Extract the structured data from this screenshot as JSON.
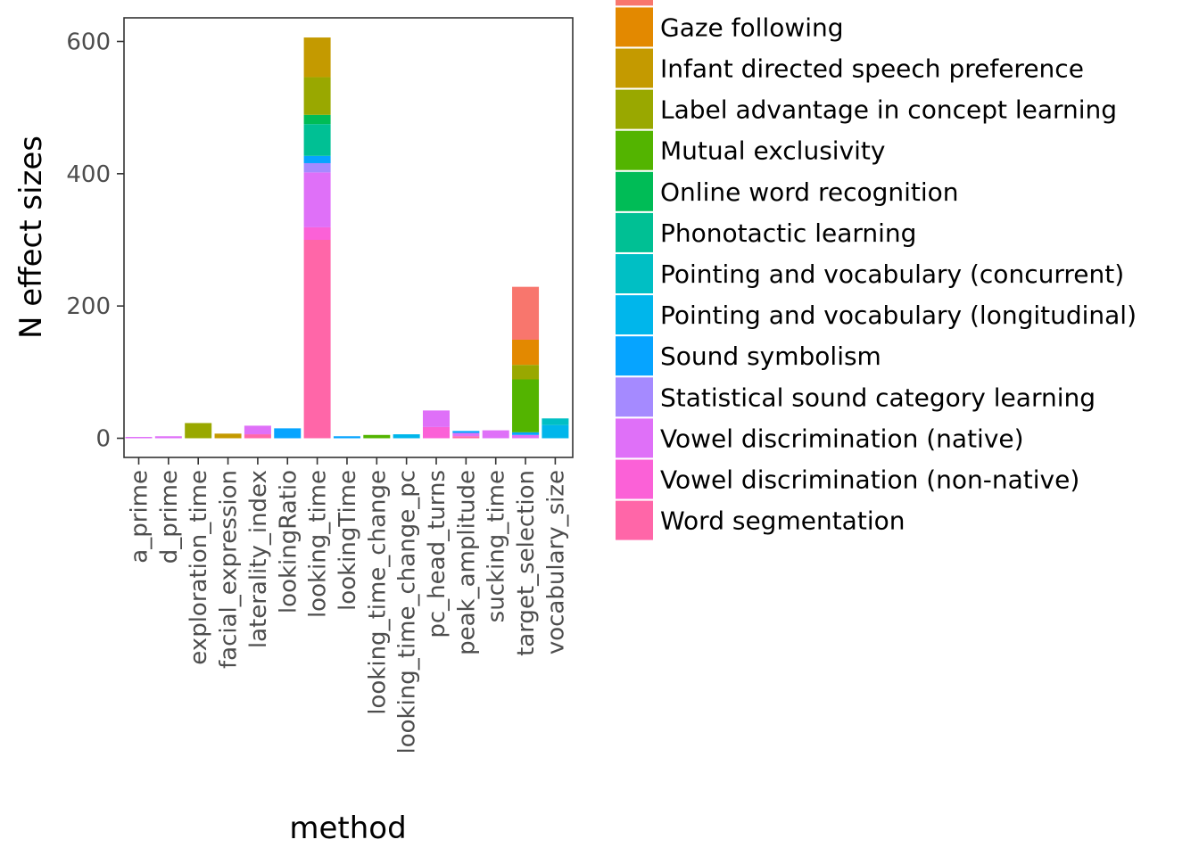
{
  "chart_data": {
    "type": "bar",
    "stacked": true,
    "xlabel": "method",
    "ylabel": "N effect sizes",
    "ylim": [
      -30,
      635
    ],
    "yticks": [
      0,
      200,
      400,
      600
    ],
    "legend_position": "right",
    "grid": false,
    "categories": [
      "a_prime",
      "d_prime",
      "exploration_time",
      "facial_expression",
      "laterality_index",
      "lookingRatio",
      "looking_time",
      "lookingTime",
      "looking_time_change",
      "looking_time_change_pc",
      "pc_head_turns",
      "peak_amplitude",
      "sucking_time",
      "target_selection",
      "vocabulary_size"
    ],
    "series": [
      {
        "name": "",
        "color": "#F8766D",
        "values": [
          0,
          0,
          0,
          0,
          0,
          0,
          0,
          0,
          0,
          0,
          0,
          0,
          0,
          80,
          0
        ]
      },
      {
        "name": "Gaze following",
        "color": "#E38900",
        "values": [
          0,
          0,
          0,
          0,
          0,
          0,
          0,
          0,
          0,
          0,
          0,
          0,
          0,
          38,
          0
        ]
      },
      {
        "name": "Infant directed speech preference",
        "color": "#C49A00",
        "values": [
          0,
          0,
          0,
          7,
          0,
          0,
          60,
          0,
          0,
          0,
          0,
          0,
          0,
          0,
          0
        ]
      },
      {
        "name": "Label advantage in concept learning",
        "color": "#99A800",
        "values": [
          0,
          0,
          23,
          0,
          0,
          0,
          57,
          0,
          0,
          0,
          0,
          0,
          0,
          22,
          0
        ]
      },
      {
        "name": "Mutual exclusivity",
        "color": "#53B400",
        "values": [
          0,
          0,
          0,
          0,
          0,
          0,
          0,
          0,
          5,
          0,
          0,
          0,
          0,
          80,
          0
        ]
      },
      {
        "name": "Online word recognition",
        "color": "#00BC56",
        "values": [
          0,
          0,
          0,
          0,
          0,
          0,
          14,
          0,
          0,
          0,
          0,
          0,
          0,
          0,
          0
        ]
      },
      {
        "name": "Phonotactic learning",
        "color": "#00C094",
        "values": [
          0,
          0,
          0,
          0,
          0,
          0,
          48,
          0,
          0,
          0,
          0,
          0,
          0,
          0,
          0
        ]
      },
      {
        "name": "Pointing and vocabulary (concurrent)",
        "color": "#00BFC4",
        "values": [
          0,
          0,
          0,
          0,
          0,
          0,
          0,
          0,
          0,
          0,
          0,
          0,
          0,
          0,
          10
        ]
      },
      {
        "name": "Pointing and vocabulary (longitudinal)",
        "color": "#00B6EB",
        "values": [
          0,
          0,
          0,
          0,
          0,
          0,
          0,
          0,
          0,
          6,
          0,
          0,
          0,
          0,
          20
        ]
      },
      {
        "name": "Sound symbolism",
        "color": "#06A4FF",
        "values": [
          0,
          0,
          0,
          0,
          0,
          15,
          11,
          3,
          0,
          0,
          0,
          3,
          0,
          4,
          0
        ]
      },
      {
        "name": "Statistical sound category learning",
        "color": "#A58AFF",
        "values": [
          0,
          0,
          0,
          0,
          0,
          0,
          14,
          0,
          0,
          0,
          0,
          0,
          0,
          0,
          0
        ]
      },
      {
        "name": "Vowel discrimination (native)",
        "color": "#DF70F8",
        "values": [
          2,
          3,
          0,
          0,
          13,
          0,
          83,
          0,
          0,
          0,
          25,
          5,
          12,
          5,
          0
        ]
      },
      {
        "name": "Vowel discrimination (non-native)",
        "color": "#FB61D7",
        "values": [
          0,
          0,
          0,
          0,
          0,
          0,
          19,
          0,
          0,
          0,
          17,
          0,
          0,
          0,
          0
        ]
      },
      {
        "name": "Word segmentation",
        "color": "#FF66A8",
        "values": [
          0,
          0,
          0,
          0,
          6,
          0,
          300,
          0,
          0,
          0,
          0,
          3,
          0,
          0,
          0
        ]
      }
    ]
  }
}
